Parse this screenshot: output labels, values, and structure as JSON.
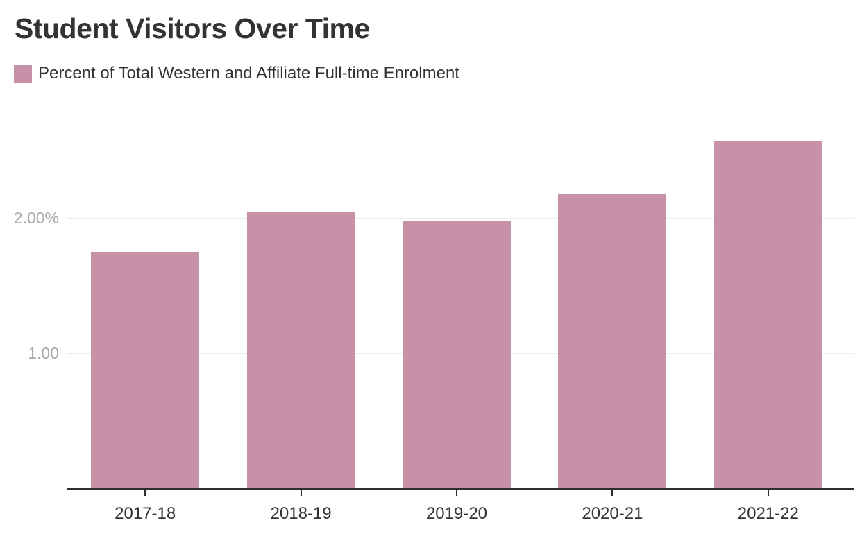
{
  "page": {
    "title": "Student Visitors Over Time"
  },
  "legend": {
    "label": "Percent of Total Western and Affiliate Full-time Enrolment"
  },
  "colors": {
    "bar": "#c791a7",
    "axis": "#2e2e2e",
    "grid": "#ececec",
    "y_label": "#a7a7a7",
    "text": "#333333"
  },
  "chart_data": {
    "type": "bar",
    "title": "Student Visitors Over Time",
    "categories": [
      "2017-18",
      "2018-19",
      "2019-20",
      "2020-21",
      "2021-22"
    ],
    "series": [
      {
        "name": "Percent of Total Western and Affiliate Full-time Enrolment",
        "values": [
          1.75,
          2.05,
          1.98,
          2.18,
          2.57
        ]
      }
    ],
    "xlabel": "",
    "ylabel": "",
    "ylim": [
      0,
      2.6
    ],
    "y_ticks": [
      {
        "value": 1.0,
        "label": "1.00"
      },
      {
        "value": 2.0,
        "label": "2.00%"
      }
    ],
    "legend_position": "top-left",
    "grid": "horizontal"
  }
}
